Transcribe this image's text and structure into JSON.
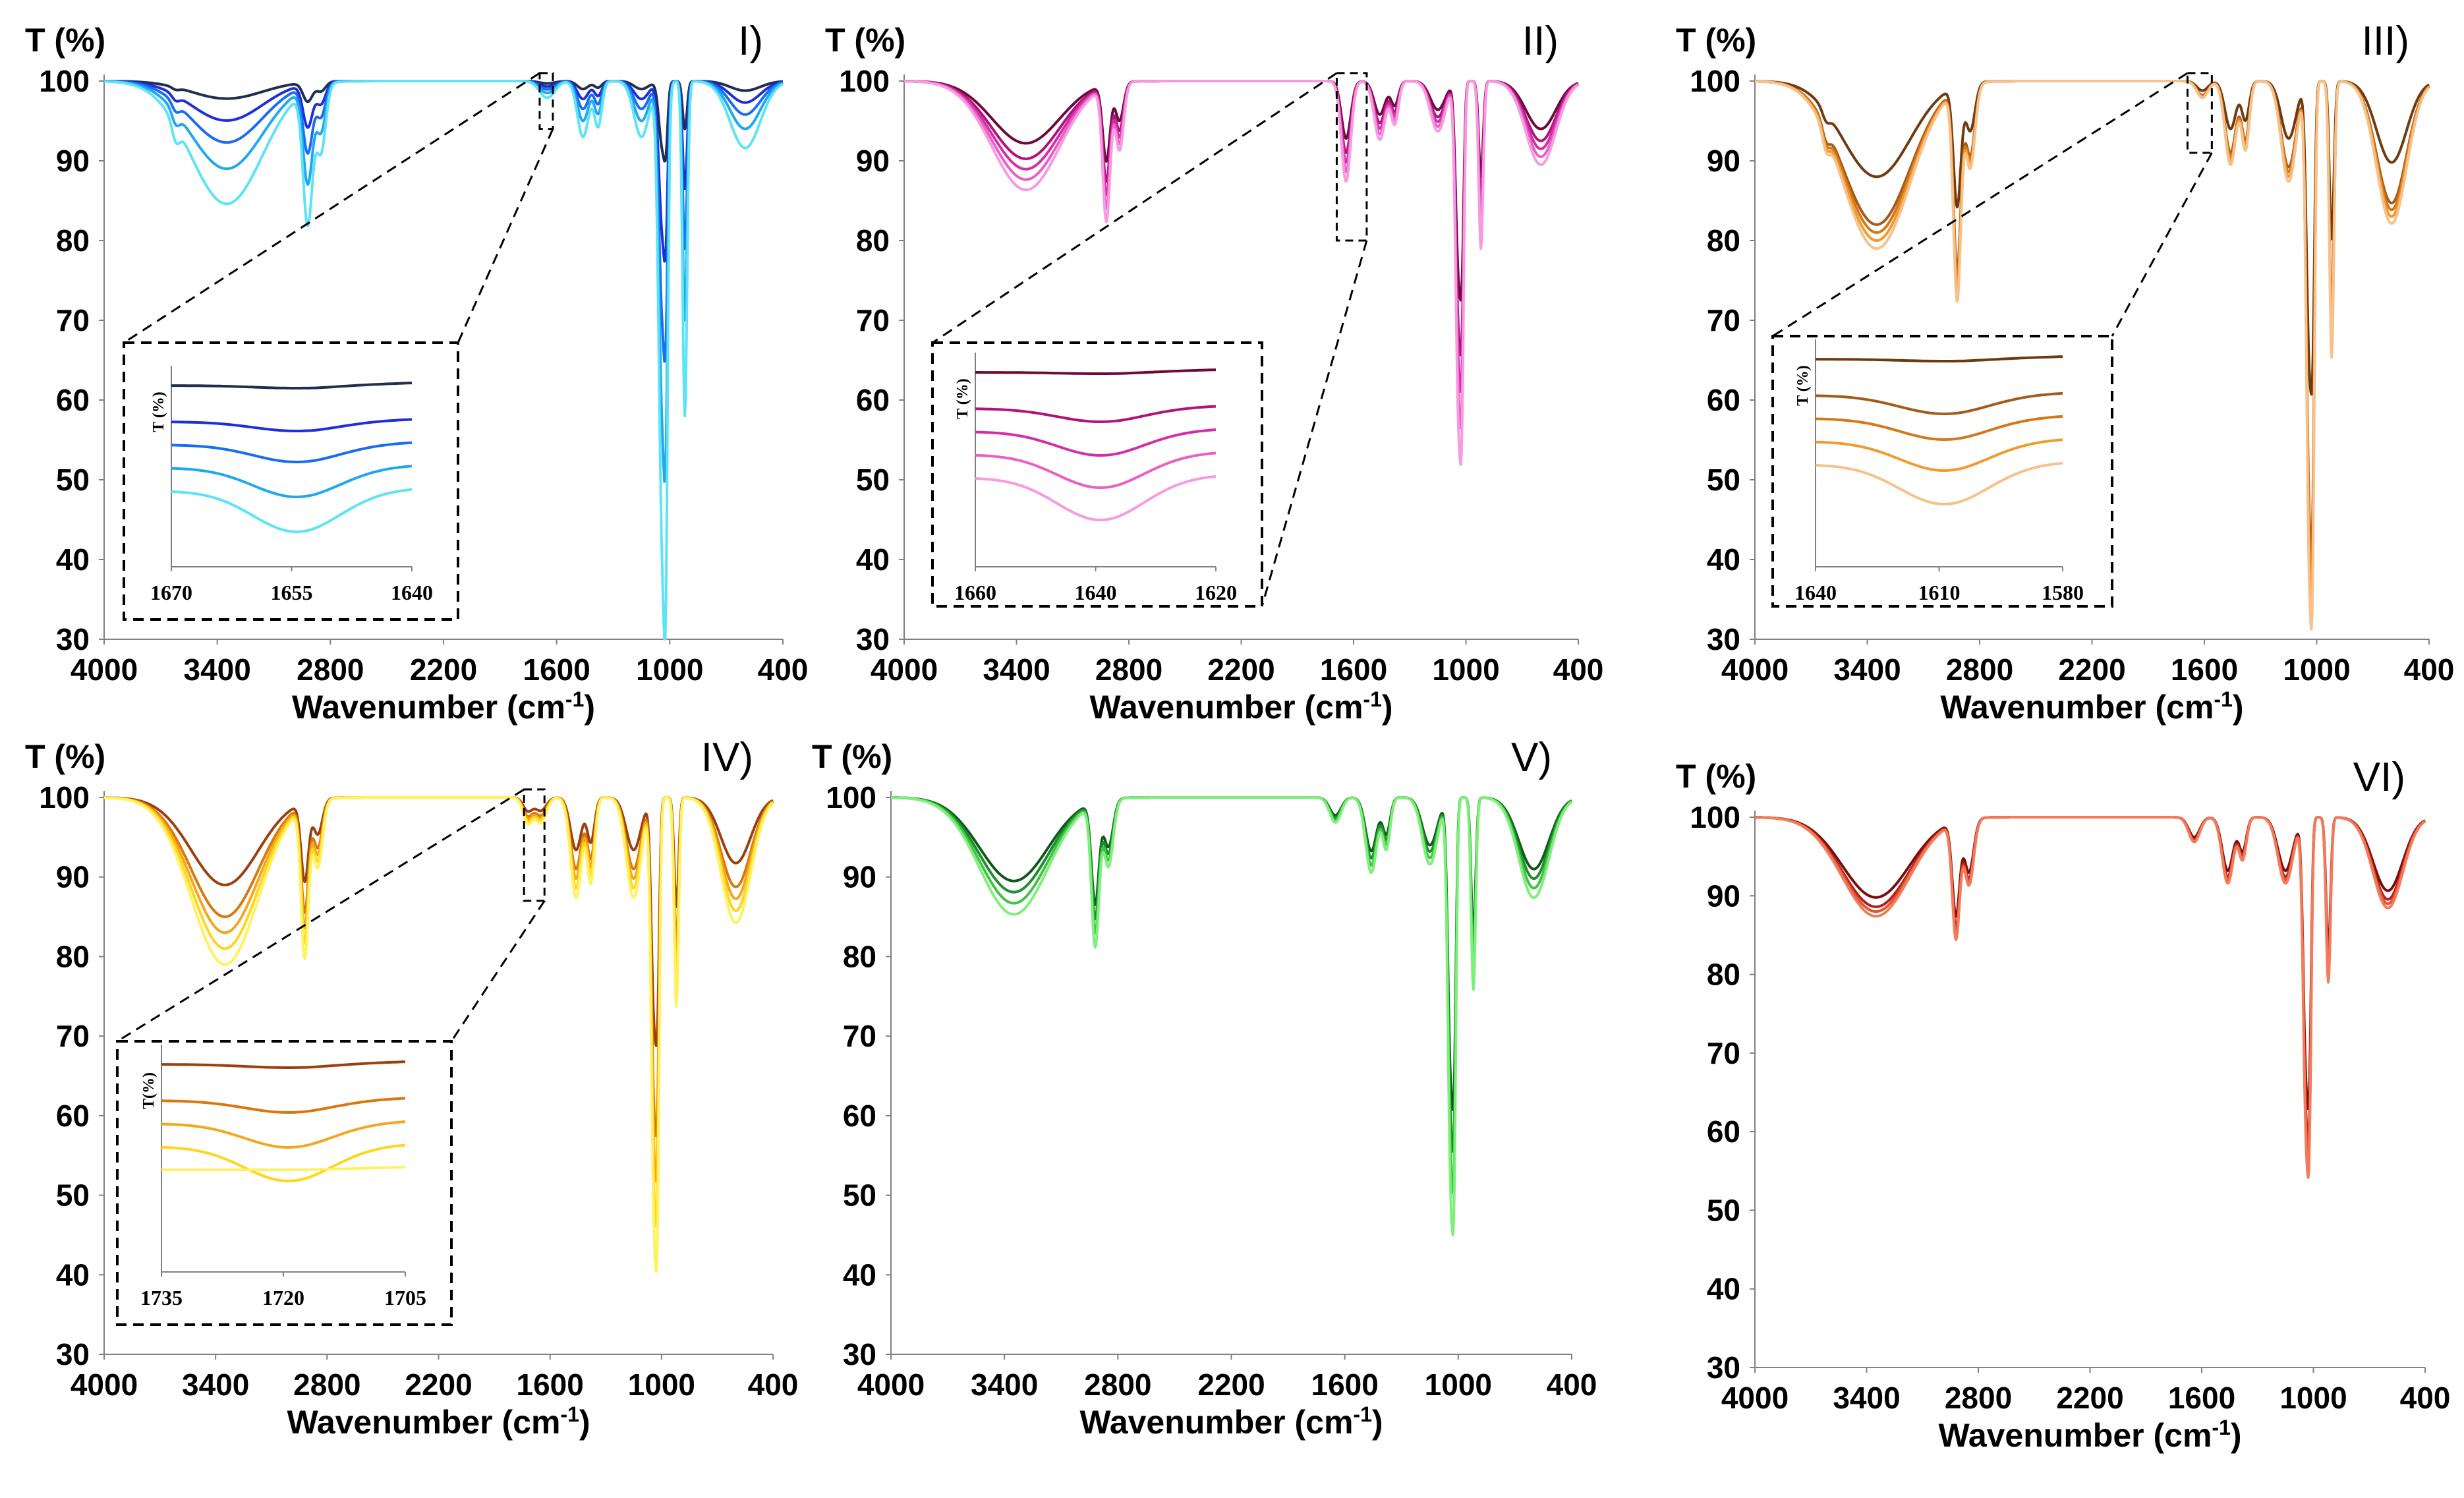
{
  "chart_data": [
    {
      "type": "line",
      "panel_label": "I)",
      "ylabel": "T (%)",
      "xlabel": "Wavenumber (cm",
      "xlabel_unit_sup": "-1",
      "xlabel_close": ")",
      "xlim": [
        4000,
        400
      ],
      "ylim": [
        30,
        100
      ],
      "x_ticks": [
        "4000",
        "3400",
        "2800",
        "2200",
        "1600",
        "1000",
        "400"
      ],
      "y_ticks": [
        "30",
        "40",
        "50",
        "60",
        "70",
        "80",
        "90",
        "100"
      ],
      "series_colors": [
        "#1f2f4f",
        "#1c2fd8",
        "#1a6cf0",
        "#1fa8f0",
        "#5ee3f5"
      ],
      "series_depth": [
        0.2,
        0.45,
        0.7,
        1.0,
        1.4
      ],
      "bands": [
        [
          3620,
          1.5,
          20
        ],
        [
          3350,
          11,
          190
        ],
        [
          2920,
          12,
          25
        ],
        [
          2850,
          6,
          25
        ],
        [
          1650,
          1.5,
          40
        ],
        [
          1460,
          5,
          30
        ],
        [
          1380,
          4,
          20
        ],
        [
          1150,
          5,
          40
        ],
        [
          1040,
          40,
          18
        ],
        [
          1020,
          25,
          10
        ],
        [
          920,
          30,
          12
        ],
        [
          600,
          6,
          80
        ]
      ],
      "inset": {
        "ticks": [
          "1670",
          "1655",
          "1640"
        ],
        "ylabel": "T (%)"
      }
    },
    {
      "type": "line",
      "panel_label": "II)",
      "ylabel": "T (%)",
      "xlabel": "Wavenumber (cm",
      "xlabel_unit_sup": "-1",
      "xlabel_close": ")",
      "xlim": [
        4000,
        400
      ],
      "ylim": [
        30,
        100
      ],
      "x_ticks": [
        "4000",
        "3400",
        "2800",
        "2200",
        "1600",
        "1000",
        "400"
      ],
      "y_ticks": [
        "30",
        "40",
        "50",
        "60",
        "70",
        "80",
        "90",
        "100"
      ],
      "series_colors": [
        "#6b0a3a",
        "#b0147a",
        "#d22fa6",
        "#e95fc6",
        "#f79ae2"
      ],
      "series_depth": [
        0.6,
        0.75,
        0.85,
        0.95,
        1.05
      ],
      "bands": [
        [
          3350,
          13,
          180
        ],
        [
          2920,
          16,
          20
        ],
        [
          2850,
          8,
          22
        ],
        [
          1640,
          12,
          25
        ],
        [
          1460,
          7,
          30
        ],
        [
          1380,
          5,
          20
        ],
        [
          1150,
          6,
          40
        ],
        [
          1040,
          38,
          15
        ],
        [
          1020,
          25,
          10
        ],
        [
          920,
          20,
          12
        ],
        [
          600,
          10,
          80
        ]
      ],
      "inset": {
        "ticks": [
          "1660",
          "1640",
          "1620"
        ],
        "ylabel": "T (%)"
      }
    },
    {
      "type": "line",
      "panel_label": "III)",
      "ylabel": "T (%)",
      "xlabel": "Wavenumber (cm",
      "xlabel_unit_sup": "-1",
      "xlabel_close": ")",
      "xlim": [
        4000,
        400
      ],
      "ylim": [
        30,
        100
      ],
      "x_ticks": [
        "4000",
        "3400",
        "2800",
        "2200",
        "1600",
        "1000",
        "400"
      ],
      "y_ticks": [
        "30",
        "40",
        "50",
        "60",
        "70",
        "80",
        "90",
        "100"
      ],
      "series_colors": [
        "#6e3a10",
        "#a45a18",
        "#d4781c",
        "#f29a2c",
        "#f8c08a"
      ],
      "series_depth": [
        0.6,
        0.9,
        0.95,
        1.0,
        1.05
      ],
      "bands": [
        [
          3620,
          2,
          20
        ],
        [
          3350,
          20,
          180
        ],
        [
          2920,
          25,
          20
        ],
        [
          2850,
          10,
          25
        ],
        [
          1610,
          2,
          30
        ],
        [
          1460,
          10,
          30
        ],
        [
          1380,
          8,
          20
        ],
        [
          1150,
          12,
          40
        ],
        [
          1040,
          55,
          15
        ],
        [
          1020,
          35,
          10
        ],
        [
          920,
          33,
          12
        ],
        [
          600,
          17,
          80
        ]
      ],
      "inset": {
        "ticks": [
          "1640",
          "1610",
          "1580"
        ],
        "ylabel": "T (%)"
      }
    },
    {
      "type": "line",
      "panel_label": "IV)",
      "ylabel": "T (%)",
      "xlabel": "Wavenumber (cm",
      "xlabel_unit_sup": "-1",
      "xlabel_close": ")",
      "xlim": [
        4000,
        400
      ],
      "ylim": [
        30,
        100
      ],
      "x_ticks": [
        "4000",
        "3400",
        "2800",
        "2200",
        "1600",
        "1000",
        "400"
      ],
      "y_ticks": [
        "30",
        "40",
        "50",
        "60",
        "70",
        "80",
        "90",
        "100"
      ],
      "series_colors": [
        "#9b3f0f",
        "#d9780e",
        "#f4a71c",
        "#ffd61c",
        "#fff25c"
      ],
      "series_depth": [
        0.55,
        0.75,
        0.85,
        0.95,
        1.05
      ],
      "bands": [
        [
          3350,
          20,
          180
        ],
        [
          2920,
          18,
          20
        ],
        [
          2850,
          8,
          25
        ],
        [
          1720,
          3,
          25
        ],
        [
          1650,
          3,
          30
        ],
        [
          1460,
          12,
          30
        ],
        [
          1380,
          10,
          20
        ],
        [
          1150,
          12,
          40
        ],
        [
          1040,
          48,
          15
        ],
        [
          1020,
          30,
          10
        ],
        [
          920,
          25,
          12
        ],
        [
          600,
          15,
          80
        ]
      ],
      "inset": {
        "ticks": [
          "1735",
          "1720",
          "1705"
        ],
        "ylabel": "T(%)"
      }
    },
    {
      "type": "line",
      "panel_label": "V)",
      "ylabel": "T (%)",
      "xlabel": "Wavenumber (cm",
      "xlabel_unit_sup": "-1",
      "xlabel_close": ")",
      "xlim": [
        4000,
        400
      ],
      "ylim": [
        30,
        100
      ],
      "x_ticks": [
        "4000",
        "3400",
        "2800",
        "2200",
        "1600",
        "1000",
        "400"
      ],
      "y_ticks": [
        "30",
        "40",
        "50",
        "60",
        "70",
        "80",
        "90",
        "100"
      ],
      "series_colors": [
        "#0d5a1a",
        "#1e8f2c",
        "#42c24a",
        "#7ef07a"
      ],
      "series_depth": [
        0.75,
        0.85,
        0.95,
        1.05
      ],
      "bands": [
        [
          3350,
          14,
          180
        ],
        [
          2920,
          17,
          20
        ],
        [
          2850,
          8,
          25
        ],
        [
          1650,
          3,
          30
        ],
        [
          1460,
          9,
          30
        ],
        [
          1380,
          6,
          20
        ],
        [
          1150,
          8,
          40
        ],
        [
          1040,
          44,
          15
        ],
        [
          1020,
          28,
          10
        ],
        [
          920,
          23,
          12
        ],
        [
          600,
          12,
          80
        ]
      ]
    },
    {
      "type": "line",
      "panel_label": "VI)",
      "ylabel": "T (%)",
      "xlabel": "Wavenumber (cm",
      "xlabel_unit_sup": "-1",
      "xlabel_close": ")",
      "xlim": [
        4000,
        400
      ],
      "ylim": [
        30,
        100
      ],
      "x_ticks": [
        "4000",
        "3400",
        "2800",
        "2200",
        "1600",
        "1000",
        "400"
      ],
      "y_ticks": [
        "30",
        "40",
        "50",
        "60",
        "70",
        "80",
        "90",
        "100"
      ],
      "series_colors": [
        "#7a0c0c",
        "#b3221a",
        "#e0553a",
        "#f47b5a"
      ],
      "series_depth": [
        0.85,
        0.95,
        1.0,
        1.05
      ],
      "bands": [
        [
          3350,
          12,
          180
        ],
        [
          2920,
          14,
          20
        ],
        [
          2850,
          8,
          25
        ],
        [
          1640,
          3,
          30
        ],
        [
          1460,
          8,
          30
        ],
        [
          1380,
          5,
          20
        ],
        [
          1150,
          8,
          40
        ],
        [
          1040,
          36,
          15
        ],
        [
          1020,
          24,
          10
        ],
        [
          920,
          20,
          12
        ],
        [
          600,
          11,
          80
        ]
      ]
    }
  ]
}
